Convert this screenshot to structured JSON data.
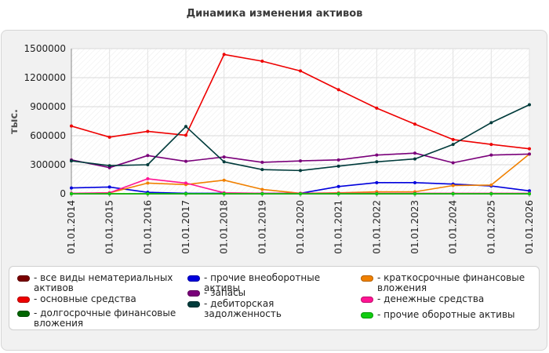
{
  "page": {
    "title": "Динамика изменения активов"
  },
  "chart_data": {
    "type": "line",
    "title": "Динамика изменения активов",
    "xlabel": "",
    "ylabel": "тыс.",
    "ylim": [
      0,
      1500000
    ],
    "yticks": [
      "0",
      "300000",
      "600000",
      "900000",
      "1200000",
      "1500000"
    ],
    "categories": [
      "01.01.2014",
      "01.01.2015",
      "01.01.2016",
      "01.01.2017",
      "01.01.2018",
      "01.01.2019",
      "01.01.2020",
      "01.01.2021",
      "01.01.2022",
      "01.01.2023",
      "01.01.2024",
      "01.01.2025",
      "01.01.2026"
    ],
    "grid": true,
    "legend_position": "bottom",
    "series": [
      {
        "name": "- все виды нематериальных активов",
        "color": "#7a0000",
        "values": [
          0,
          0,
          0,
          0,
          0,
          0,
          0,
          0,
          0,
          0,
          0,
          0,
          0
        ]
      },
      {
        "name": "- прочие внеоборотные активы",
        "color": "#0000dd",
        "values": [
          60000,
          70000,
          15000,
          5000,
          5000,
          5000,
          5000,
          75000,
          115000,
          115000,
          100000,
          80000,
          30000
        ]
      },
      {
        "name": "- краткосрочные финансовые вложения",
        "color": "#f08000",
        "values": [
          0,
          10000,
          110000,
          95000,
          140000,
          45000,
          5000,
          10000,
          20000,
          20000,
          85000,
          90000,
          410000
        ]
      },
      {
        "name": "- основные средства",
        "color": "#ee0000",
        "values": [
          700000,
          585000,
          645000,
          605000,
          1440000,
          1370000,
          1270000,
          1075000,
          885000,
          720000,
          560000,
          510000,
          465000
        ]
      },
      {
        "name": "- запасы",
        "color": "#7a007a",
        "values": [
          350000,
          270000,
          395000,
          335000,
          380000,
          325000,
          340000,
          350000,
          400000,
          420000,
          320000,
          400000,
          410000
        ]
      },
      {
        "name": "- денежные средства",
        "color": "#ff1493",
        "values": [
          5000,
          10000,
          155000,
          110000,
          10000,
          5000,
          5000,
          5000,
          5000,
          5000,
          5000,
          5000,
          5000
        ]
      },
      {
        "name": "- долгосрочные финансовые вложения",
        "color": "#006600",
        "values": [
          0,
          0,
          0,
          0,
          0,
          0,
          0,
          0,
          0,
          0,
          0,
          0,
          0
        ]
      },
      {
        "name": "- дебиторская задолженность",
        "color": "#003b3b",
        "values": [
          340000,
          290000,
          300000,
          695000,
          330000,
          250000,
          240000,
          285000,
          330000,
          360000,
          510000,
          735000,
          920000
        ]
      },
      {
        "name": "- прочие оборотные активы",
        "color": "#11cc11",
        "values": [
          0,
          0,
          0,
          0,
          0,
          0,
          0,
          0,
          0,
          0,
          0,
          0,
          0
        ]
      }
    ]
  }
}
